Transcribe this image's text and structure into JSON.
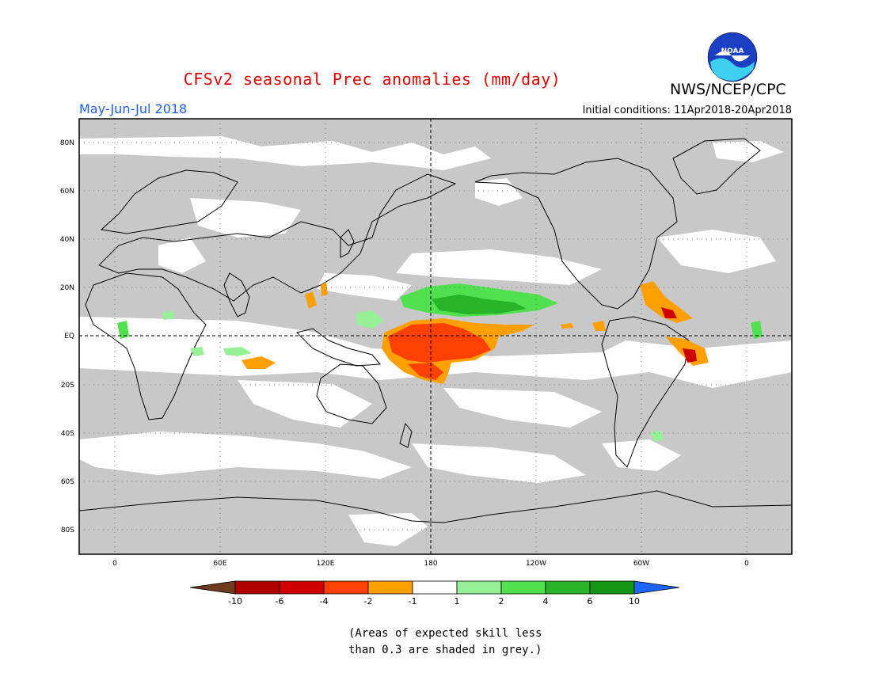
{
  "header": {
    "title": "CFSv2 seasonal Prec anomalies (mm/day)",
    "organization": "NWS/NCEP/CPC",
    "logo_text": "NOAA",
    "period": "May-Jun-Jul 2018",
    "initial_conditions": "Initial conditions: 11Apr2018-20Apr2018"
  },
  "colors": {
    "title": "#e00000",
    "period": "#1f5fff",
    "grey_mask": "#c8c8c8",
    "land_outline": "#000000"
  },
  "map": {
    "lat_labels": [
      "80N",
      "60N",
      "40N",
      "20N",
      "EQ",
      "20S",
      "40S",
      "60S",
      "80S"
    ],
    "lon_labels": [
      "0",
      "60E",
      "120E",
      "180",
      "120W",
      "60W",
      "0"
    ]
  },
  "legend": {
    "tick_labels": [
      "-10",
      "-6",
      "-4",
      "-2",
      "-1",
      "1",
      "2",
      "4",
      "6",
      "10"
    ],
    "colors": [
      "#6e3b1e",
      "#b00000",
      "#d00000",
      "#ff4000",
      "#ffa000",
      "#ffffff",
      "#96f096",
      "#50e050",
      "#28b428",
      "#149614",
      "#1e64ff"
    ]
  },
  "note": {
    "line1": "(Areas of expected skill less",
    "line2": "than 0.3 are shaded in grey.)"
  }
}
